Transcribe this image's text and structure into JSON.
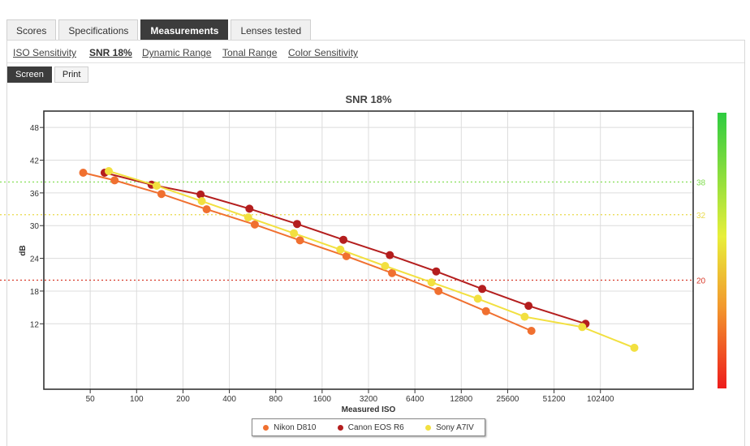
{
  "tabs": [
    {
      "label": "Scores",
      "active": false
    },
    {
      "label": "Specifications",
      "active": false
    },
    {
      "label": "Measurements",
      "active": true
    },
    {
      "label": "Lenses tested",
      "active": false
    }
  ],
  "subtabs": [
    {
      "label": "ISO Sensitivity",
      "active": false
    },
    {
      "label": "SNR 18%",
      "active": true
    },
    {
      "label": "Dynamic Range",
      "active": false
    },
    {
      "label": "Tonal Range",
      "active": false
    },
    {
      "label": "Color Sensitivity",
      "active": false
    }
  ],
  "modes": [
    {
      "label": "Screen",
      "active": true
    },
    {
      "label": "Print",
      "active": false
    }
  ],
  "chart_data": {
    "type": "line",
    "title": "SNR 18%",
    "xlabel": "Measured ISO",
    "ylabel": "dB",
    "x_scale": "log2",
    "xlim": [
      25,
      409600
    ],
    "ylim": [
      0,
      51
    ],
    "x_ticks": [
      50,
      100,
      200,
      400,
      800,
      1600,
      3200,
      6400,
      12800,
      25600,
      51200,
      102400
    ],
    "y_ticks": [
      12,
      18,
      24,
      30,
      36,
      42,
      48
    ],
    "grid": true,
    "reference_lines": [
      {
        "label": "38",
        "value": 38,
        "color": "#7ddc4a"
      },
      {
        "label": "32",
        "value": 32,
        "color": "#e9d94a"
      },
      {
        "label": "20",
        "value": 20,
        "color": "#d83a2a"
      }
    ],
    "scale_colors": [
      "#2ecc40",
      "#e8ef3a",
      "#f29a2e",
      "#ee1c1c"
    ],
    "series": [
      {
        "name": "Nikon D810",
        "color": "#f07030",
        "x": [
          45,
          72,
          145,
          285,
          585,
          1150,
          2300,
          4550,
          9100,
          18500,
          36500
        ],
        "y": [
          39.7,
          38.3,
          35.8,
          33.0,
          30.2,
          27.3,
          24.4,
          21.3,
          18.0,
          14.3,
          10.7
        ]
      },
      {
        "name": "Canon EOS R6",
        "color": "#b41e1e",
        "x": [
          62,
          125,
          260,
          540,
          1100,
          2200,
          4400,
          8800,
          17500,
          35000,
          82000
        ],
        "y": [
          39.7,
          37.5,
          35.7,
          33.1,
          30.3,
          27.4,
          24.6,
          21.6,
          18.4,
          15.3,
          12.0
        ]
      },
      {
        "name": "Sony A7IV",
        "color": "#f2e040",
        "x": [
          66,
          135,
          265,
          530,
          1050,
          2100,
          4100,
          8200,
          16400,
          33000,
          78000,
          170000
        ],
        "y": [
          40.0,
          37.3,
          34.5,
          31.5,
          28.6,
          25.6,
          22.6,
          19.6,
          16.6,
          13.3,
          11.4,
          7.6
        ]
      }
    ]
  }
}
